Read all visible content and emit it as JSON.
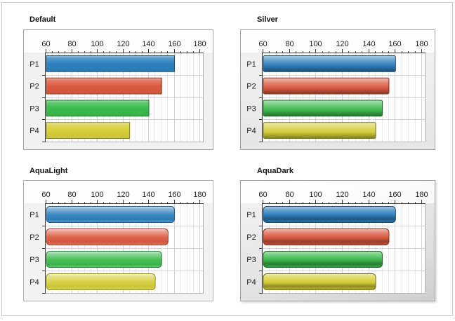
{
  "window": {
    "background": "#ffffff",
    "frame_border_color": "#c9c9c9"
  },
  "chart_data": [
    {
      "type": "bar",
      "orientation": "horizontal",
      "title": "Default",
      "theme": "default",
      "categories": [
        "P1",
        "P2",
        "P3",
        "P4"
      ],
      "values": [
        160,
        150,
        140,
        125
      ],
      "series_colors": [
        "#2e81be",
        "#dc5b40",
        "#3cbb4d",
        "#d6ce39"
      ],
      "xlim": [
        60,
        185
      ],
      "xticks": [
        60,
        80,
        100,
        120,
        140,
        160,
        180
      ],
      "minor_tick_step": 5,
      "grid": true,
      "axis_position": "top",
      "legend": "none"
    },
    {
      "type": "bar",
      "orientation": "horizontal",
      "title": "Silver",
      "theme": "silver",
      "categories": [
        "P1",
        "P2",
        "P3",
        "P4"
      ],
      "values": [
        160,
        155,
        150,
        145
      ],
      "series_colors": [
        "#2e81be",
        "#dc5b40",
        "#3cbb4d",
        "#d6ce39"
      ],
      "xlim": [
        60,
        185
      ],
      "xticks": [
        60,
        80,
        100,
        120,
        140,
        160,
        180
      ],
      "minor_tick_step": 5,
      "grid": true,
      "axis_position": "top",
      "legend": "none"
    },
    {
      "type": "bar",
      "orientation": "horizontal",
      "title": "AquaLight",
      "theme": "aqualight",
      "categories": [
        "P1",
        "P2",
        "P3",
        "P4"
      ],
      "values": [
        160,
        155,
        150,
        145
      ],
      "series_colors": [
        "#2e81be",
        "#dc5b40",
        "#3cbb4d",
        "#d6ce39"
      ],
      "xlim": [
        60,
        185
      ],
      "xticks": [
        60,
        80,
        100,
        120,
        140,
        160,
        180
      ],
      "minor_tick_step": 5,
      "grid": true,
      "axis_position": "top",
      "legend": "none"
    },
    {
      "type": "bar",
      "orientation": "horizontal",
      "title": "AquaDark",
      "theme": "aquadark",
      "categories": [
        "P1",
        "P2",
        "P3",
        "P4"
      ],
      "values": [
        160,
        155,
        150,
        145
      ],
      "series_colors": [
        "#2e81be",
        "#dc5b40",
        "#3cbb4d",
        "#d6ce39"
      ],
      "xlim": [
        60,
        185
      ],
      "xticks": [
        60,
        80,
        100,
        120,
        140,
        160,
        180
      ],
      "minor_tick_step": 5,
      "grid": true,
      "axis_position": "top",
      "legend": "none"
    }
  ]
}
